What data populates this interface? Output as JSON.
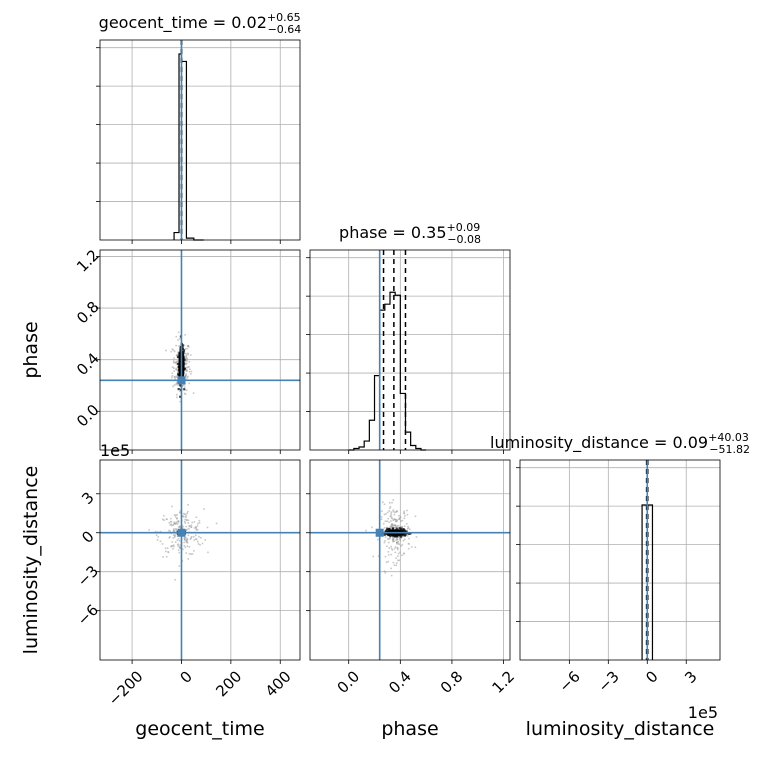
{
  "chart_data": {
    "type": "corner",
    "parameters": [
      "geocent_time",
      "phase",
      "luminosity_distance"
    ],
    "truths": {
      "geocent_time": 0,
      "phase": 0.24,
      "luminosity_distance": 0
    },
    "colors": {
      "truth": "#4682b4",
      "hist": "#000000",
      "grid": "#b0b0b0",
      "scatter": "#808080"
    },
    "grid": true,
    "x_axes": {
      "geocent_time": {
        "ticks": [
          -200,
          0,
          200,
          400
        ],
        "tick_labels": [
          "−200",
          "0",
          "200",
          "400"
        ],
        "lim": [
          -330,
          480
        ]
      },
      "phase": {
        "ticks": [
          0.0,
          0.4,
          0.8,
          1.2
        ],
        "tick_labels": [
          "0.0",
          "0.4",
          "0.8",
          "1.2"
        ],
        "lim": [
          -0.3,
          1.25
        ]
      },
      "luminosity_distance": {
        "ticks": [
          -6,
          -3,
          0,
          3
        ],
        "tick_labels": [
          "−6",
          "−3",
          "0",
          "3"
        ],
        "lim": [
          -9.8,
          5.6
        ],
        "offset_text": "1e5"
      }
    },
    "y_axes": {
      "phase": {
        "ticks": [
          0.0,
          0.4,
          0.8,
          1.2
        ],
        "tick_labels": [
          "0.0",
          "0.4",
          "0.8",
          "1.2"
        ],
        "lim": [
          -0.3,
          1.25
        ]
      },
      "luminosity_distance": {
        "ticks": [
          -6,
          -3,
          0,
          3
        ],
        "tick_labels": [
          "−6",
          "−3",
          "0",
          "3"
        ],
        "lim": [
          -9.8,
          5.6
        ],
        "offset_text": "1e5"
      }
    },
    "diagonal": [
      {
        "param": "geocent_time",
        "title_prefix": "geocent_time = ",
        "median": "0.02",
        "plus": "+0.65",
        "minus": "−0.64",
        "quantiles": [
          -0.62,
          0.02,
          0.67
        ],
        "bin_edges": [
          -30,
          -10,
          0,
          20,
          50,
          90
        ],
        "counts": [
          0.04,
          1.0,
          0.96,
          0.01,
          0
        ],
        "ymax": 1.0
      },
      {
        "param": "phase",
        "title_prefix": "phase = ",
        "median": "0.35",
        "plus": "+0.09",
        "minus": "−0.08",
        "quantiles": [
          0.27,
          0.35,
          0.44
        ],
        "bin_edges": [
          0.0,
          0.04,
          0.08,
          0.12,
          0.16,
          0.2,
          0.24,
          0.28,
          0.32,
          0.36,
          0.4,
          0.44,
          0.48,
          0.52,
          0.56,
          0.6
        ],
        "counts": [
          0.0,
          0.01,
          0.02,
          0.06,
          0.2,
          0.5,
          0.94,
          0.98,
          1.06,
          1.04,
          0.38,
          0.12,
          0.03,
          0.01,
          0.0
        ],
        "ymax": 1.25
      },
      {
        "param": "luminosity_distance",
        "title_prefix": "luminosity_distance = ",
        "median": "0.09",
        "plus": "+40.03",
        "minus": "−51.82",
        "quantiles": [
          -0.0518,
          0.0,
          0.04
        ],
        "bin_edges": [
          -0.4,
          0.0,
          0.4
        ],
        "counts": [
          1.0,
          1.0
        ],
        "ymax": 1.2
      }
    ],
    "scatter_panels": [
      {
        "x": "geocent_time",
        "y": "phase",
        "center": [
          0,
          0.35
        ],
        "spread": [
          5,
          0.07
        ],
        "extent": [
          60,
          0.35
        ]
      },
      {
        "x": "geocent_time",
        "y": "luminosity_distance",
        "center": [
          0,
          0.0
        ],
        "spread": [
          6,
          0.06
        ],
        "extent": [
          150,
          3.0
        ]
      },
      {
        "x": "phase",
        "y": "luminosity_distance",
        "center": [
          0.36,
          0.0
        ],
        "spread": [
          0.04,
          0.12
        ],
        "extent": [
          0.2,
          3.5
        ]
      }
    ]
  }
}
